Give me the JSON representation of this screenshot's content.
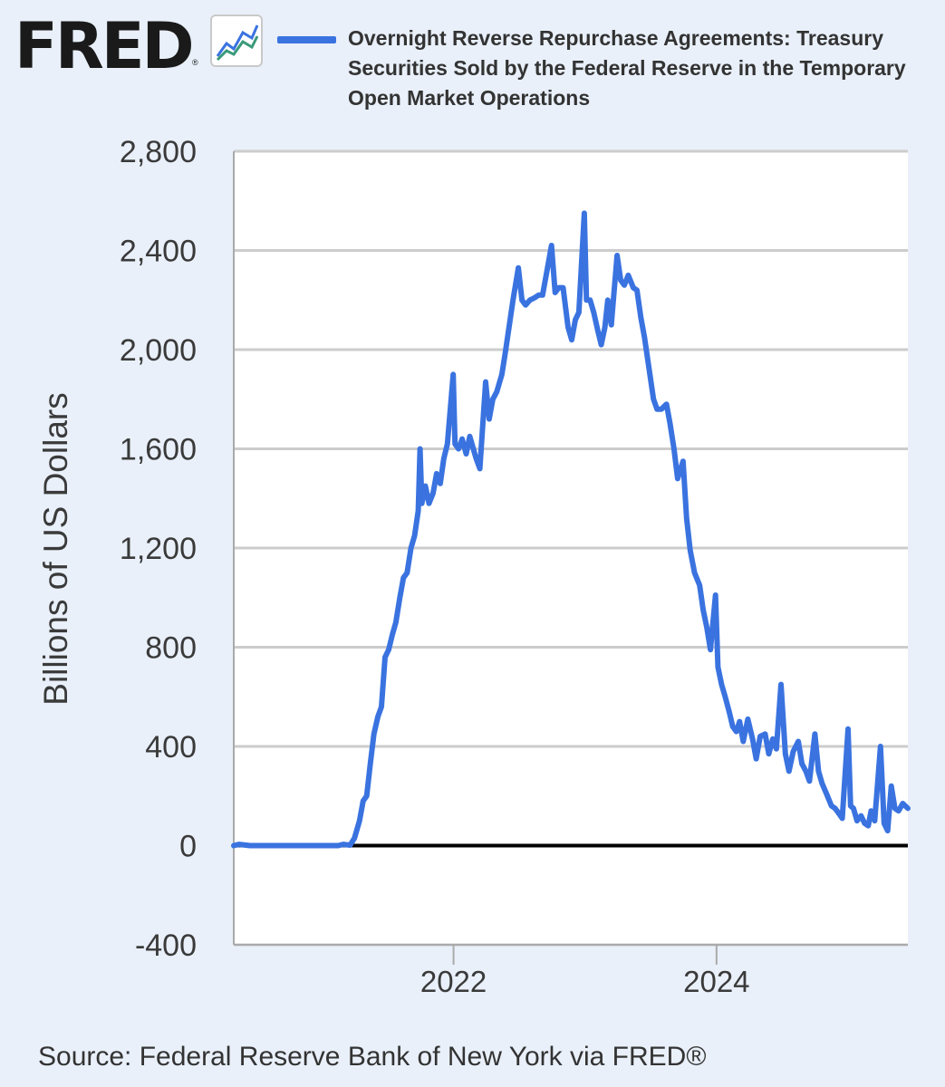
{
  "header": {
    "logo_text": "FRED",
    "logo_reg": "®",
    "legend_label": "Overnight Reverse Repurchase Agreements: Treasury Securities Sold by the Federal Reserve in the Temporary Open Market Operations"
  },
  "footer": {
    "source": "Source: Federal Reserve Bank of New York via FRED®"
  },
  "colors": {
    "series": "#3a73e0",
    "plot_bg": "#ffffff",
    "page_bg": "#e9f0fa",
    "grid": "#cccccc",
    "zero_line": "#000000"
  },
  "icons": {
    "logo_icon": "line-chart-icon"
  },
  "chart_data": {
    "type": "line",
    "title": "",
    "xlabel": "",
    "ylabel": "Billions of US Dollars",
    "grid": true,
    "xlim": [
      "2020-05-01",
      "2025-06-15"
    ],
    "ylim": [
      -400,
      2800
    ],
    "yticks": [
      -400,
      0,
      400,
      800,
      1200,
      1600,
      2000,
      2400,
      2800
    ],
    "ytick_labels": [
      "-400",
      "0",
      "400",
      "800",
      "1,200",
      "1,600",
      "2,000",
      "2,400",
      "2,800"
    ],
    "xticks": [
      "2022-01-01",
      "2024-01-01"
    ],
    "xtick_labels": [
      "2022",
      "2024"
    ],
    "series": [
      {
        "name": "Overnight Reverse Repurchase Agreements: Treasury Securities Sold by the Federal Reserve in the Temporary Open Market Operations",
        "points": [
          [
            "2020-05-01",
            0
          ],
          [
            "2020-05-15",
            5
          ],
          [
            "2020-06-15",
            0
          ],
          [
            "2020-08-01",
            0
          ],
          [
            "2020-10-01",
            0
          ],
          [
            "2020-12-01",
            0
          ],
          [
            "2021-01-01",
            0
          ],
          [
            "2021-02-15",
            0
          ],
          [
            "2021-03-01",
            5
          ],
          [
            "2021-03-20",
            2
          ],
          [
            "2021-04-01",
            30
          ],
          [
            "2021-04-15",
            100
          ],
          [
            "2021-04-25",
            180
          ],
          [
            "2021-05-05",
            200
          ],
          [
            "2021-05-15",
            330
          ],
          [
            "2021-05-25",
            450
          ],
          [
            "2021-06-05",
            520
          ],
          [
            "2021-06-15",
            560
          ],
          [
            "2021-06-25",
            760
          ],
          [
            "2021-07-05",
            790
          ],
          [
            "2021-07-15",
            850
          ],
          [
            "2021-07-25",
            900
          ],
          [
            "2021-08-05",
            1000
          ],
          [
            "2021-08-15",
            1080
          ],
          [
            "2021-08-25",
            1100
          ],
          [
            "2021-09-05",
            1200
          ],
          [
            "2021-09-15",
            1250
          ],
          [
            "2021-09-25",
            1350
          ],
          [
            "2021-09-30",
            1600
          ],
          [
            "2021-10-05",
            1380
          ],
          [
            "2021-10-15",
            1450
          ],
          [
            "2021-10-25",
            1380
          ],
          [
            "2021-11-05",
            1420
          ],
          [
            "2021-11-15",
            1500
          ],
          [
            "2021-11-25",
            1460
          ],
          [
            "2021-12-05",
            1560
          ],
          [
            "2021-12-15",
            1620
          ],
          [
            "2021-12-31",
            1900
          ],
          [
            "2022-01-05",
            1620
          ],
          [
            "2022-01-15",
            1600
          ],
          [
            "2022-01-25",
            1640
          ],
          [
            "2022-02-05",
            1580
          ],
          [
            "2022-02-15",
            1650
          ],
          [
            "2022-02-25",
            1600
          ],
          [
            "2022-03-05",
            1560
          ],
          [
            "2022-03-15",
            1520
          ],
          [
            "2022-03-31",
            1870
          ],
          [
            "2022-04-10",
            1720
          ],
          [
            "2022-04-20",
            1800
          ],
          [
            "2022-05-01",
            1830
          ],
          [
            "2022-05-15",
            1900
          ],
          [
            "2022-05-25",
            1990
          ],
          [
            "2022-06-05",
            2100
          ],
          [
            "2022-06-15",
            2200
          ],
          [
            "2022-06-30",
            2330
          ],
          [
            "2022-07-10",
            2200
          ],
          [
            "2022-07-20",
            2180
          ],
          [
            "2022-08-01",
            2200
          ],
          [
            "2022-08-15",
            2210
          ],
          [
            "2022-08-25",
            2220
          ],
          [
            "2022-09-05",
            2220
          ],
          [
            "2022-09-15",
            2300
          ],
          [
            "2022-09-30",
            2420
          ],
          [
            "2022-10-10",
            2230
          ],
          [
            "2022-10-20",
            2250
          ],
          [
            "2022-11-01",
            2250
          ],
          [
            "2022-11-15",
            2090
          ],
          [
            "2022-11-25",
            2040
          ],
          [
            "2022-12-05",
            2120
          ],
          [
            "2022-12-15",
            2150
          ],
          [
            "2022-12-30",
            2550
          ],
          [
            "2023-01-05",
            2200
          ],
          [
            "2023-01-15",
            2200
          ],
          [
            "2023-01-25",
            2150
          ],
          [
            "2023-02-05",
            2080
          ],
          [
            "2023-02-15",
            2020
          ],
          [
            "2023-02-25",
            2090
          ],
          [
            "2023-03-05",
            2200
          ],
          [
            "2023-03-15",
            2100
          ],
          [
            "2023-03-31",
            2380
          ],
          [
            "2023-04-10",
            2280
          ],
          [
            "2023-04-20",
            2260
          ],
          [
            "2023-05-01",
            2300
          ],
          [
            "2023-05-15",
            2250
          ],
          [
            "2023-05-25",
            2240
          ],
          [
            "2023-06-05",
            2130
          ],
          [
            "2023-06-15",
            2050
          ],
          [
            "2023-06-30",
            1900
          ],
          [
            "2023-07-10",
            1800
          ],
          [
            "2023-07-20",
            1760
          ],
          [
            "2023-08-01",
            1760
          ],
          [
            "2023-08-15",
            1780
          ],
          [
            "2023-08-25",
            1700
          ],
          [
            "2023-09-05",
            1600
          ],
          [
            "2023-09-15",
            1480
          ],
          [
            "2023-09-30",
            1550
          ],
          [
            "2023-10-10",
            1320
          ],
          [
            "2023-10-20",
            1190
          ],
          [
            "2023-11-01",
            1100
          ],
          [
            "2023-11-15",
            1050
          ],
          [
            "2023-11-25",
            950
          ],
          [
            "2023-12-05",
            880
          ],
          [
            "2023-12-15",
            790
          ],
          [
            "2023-12-29",
            1010
          ],
          [
            "2024-01-05",
            720
          ],
          [
            "2024-01-15",
            650
          ],
          [
            "2024-01-25",
            600
          ],
          [
            "2024-02-05",
            540
          ],
          [
            "2024-02-15",
            480
          ],
          [
            "2024-02-25",
            460
          ],
          [
            "2024-03-05",
            500
          ],
          [
            "2024-03-15",
            420
          ],
          [
            "2024-03-28",
            510
          ],
          [
            "2024-04-10",
            430
          ],
          [
            "2024-04-20",
            350
          ],
          [
            "2024-05-01",
            440
          ],
          [
            "2024-05-15",
            450
          ],
          [
            "2024-05-25",
            370
          ],
          [
            "2024-06-05",
            430
          ],
          [
            "2024-06-15",
            390
          ],
          [
            "2024-06-28",
            650
          ],
          [
            "2024-07-10",
            370
          ],
          [
            "2024-07-20",
            300
          ],
          [
            "2024-08-01",
            380
          ],
          [
            "2024-08-15",
            420
          ],
          [
            "2024-08-25",
            330
          ],
          [
            "2024-09-05",
            300
          ],
          [
            "2024-09-15",
            260
          ],
          [
            "2024-09-30",
            450
          ],
          [
            "2024-10-10",
            300
          ],
          [
            "2024-10-20",
            250
          ],
          [
            "2024-11-01",
            210
          ],
          [
            "2024-11-15",
            160
          ],
          [
            "2024-11-25",
            150
          ],
          [
            "2024-12-05",
            130
          ],
          [
            "2024-12-15",
            110
          ],
          [
            "2024-12-31",
            470
          ],
          [
            "2025-01-07",
            160
          ],
          [
            "2025-01-15",
            150
          ],
          [
            "2025-01-25",
            100
          ],
          [
            "2025-02-05",
            120
          ],
          [
            "2025-02-15",
            90
          ],
          [
            "2025-02-25",
            80
          ],
          [
            "2025-03-05",
            140
          ],
          [
            "2025-03-15",
            100
          ],
          [
            "2025-03-31",
            400
          ],
          [
            "2025-04-10",
            90
          ],
          [
            "2025-04-20",
            60
          ],
          [
            "2025-04-30",
            240
          ],
          [
            "2025-05-10",
            150
          ],
          [
            "2025-05-20",
            140
          ],
          [
            "2025-06-01",
            170
          ],
          [
            "2025-06-15",
            150
          ]
        ]
      }
    ]
  }
}
